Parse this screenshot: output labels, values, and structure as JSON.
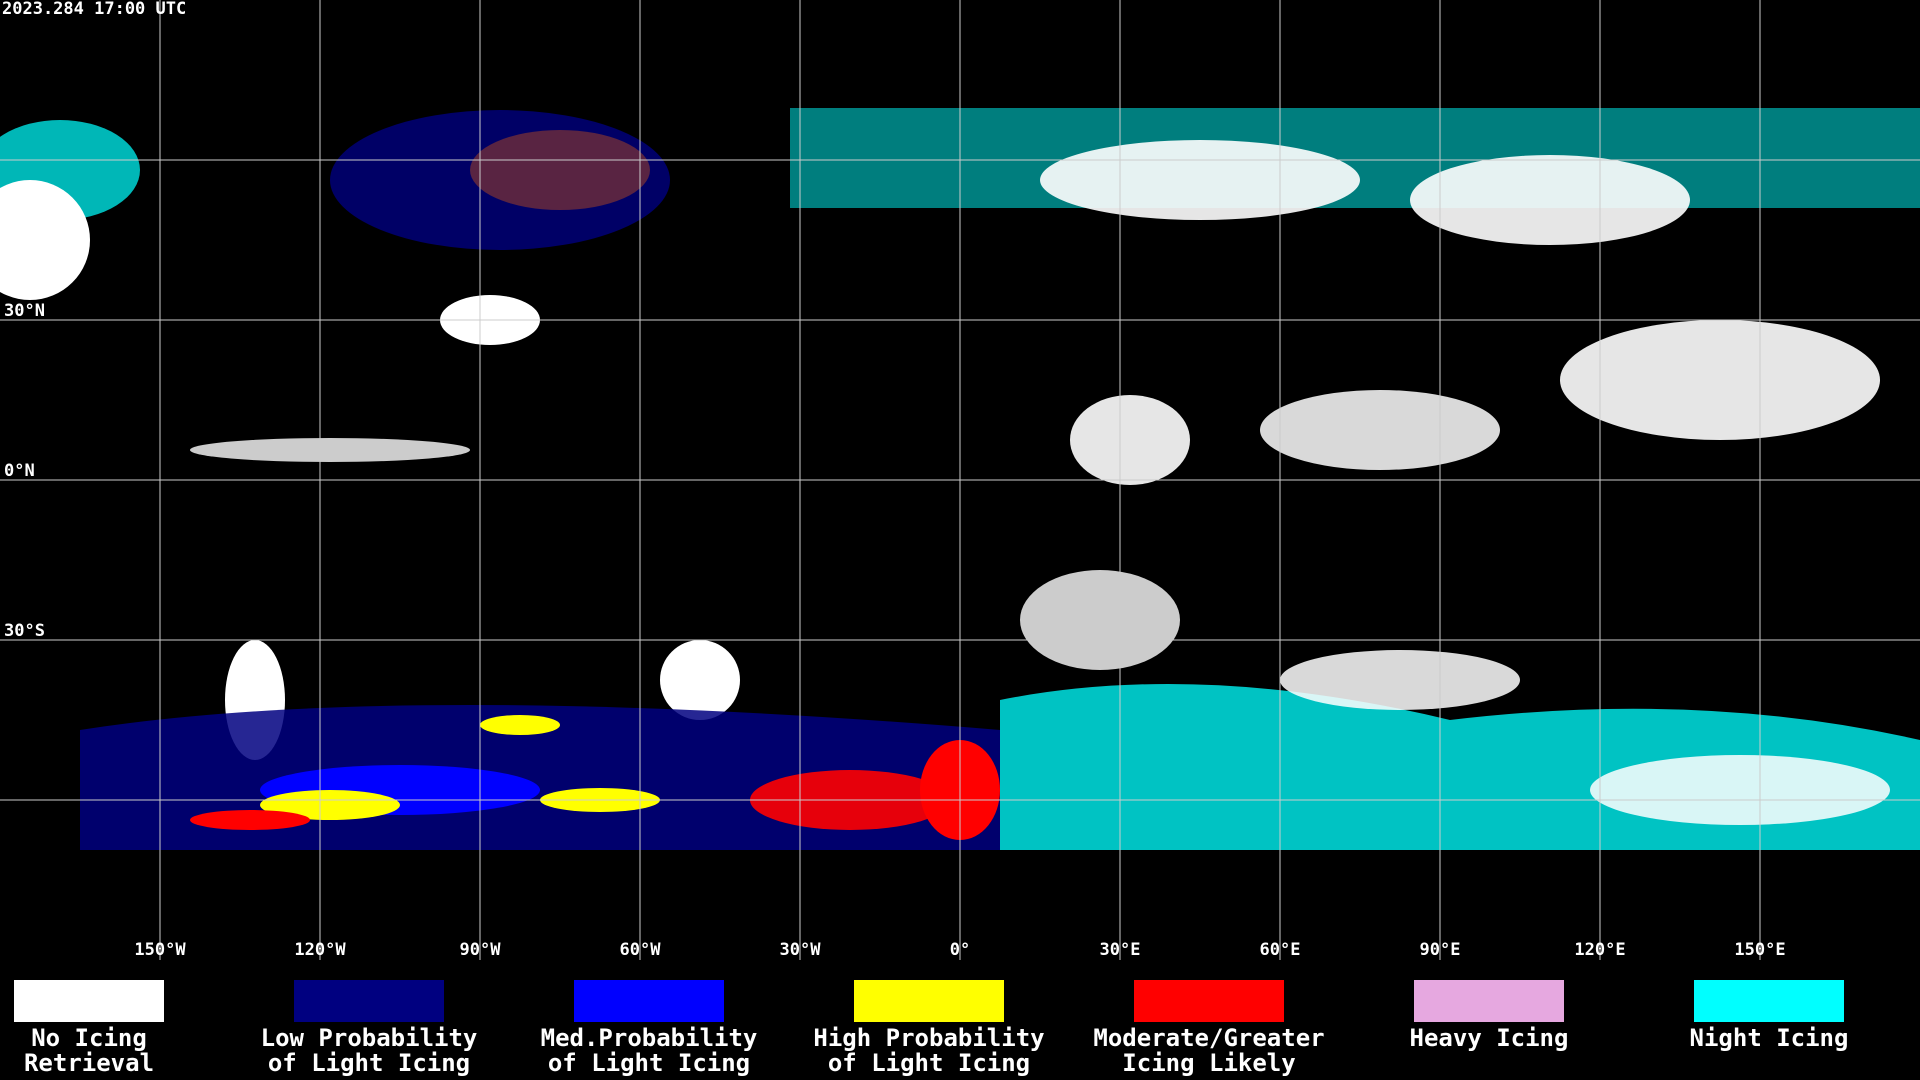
{
  "header": {
    "timestamp": "2023.284 17:00 UTC"
  },
  "map": {
    "lon_labels": [
      "150°W",
      "120°W",
      "90°W",
      "60°W",
      "30°W",
      "0°",
      "30°E",
      "60°E",
      "90°E",
      "120°E",
      "150°E"
    ],
    "lat_labels": [
      "30°N",
      "0°N",
      "30°S"
    ]
  },
  "legend": {
    "items": [
      {
        "lines": [
          "No Icing",
          "Retrieval"
        ],
        "color": "#ffffff"
      },
      {
        "lines": [
          "Low Probability",
          "of Light Icing"
        ],
        "color": "#000080"
      },
      {
        "lines": [
          "Med.Probability",
          "of Light Icing"
        ],
        "color": "#0000ff"
      },
      {
        "lines": [
          "High Probability",
          "of Light Icing"
        ],
        "color": "#ffff00"
      },
      {
        "lines": [
          "Moderate/Greater",
          "Icing Likely"
        ],
        "color": "#ff0000"
      },
      {
        "lines": [
          "Heavy Icing"
        ],
        "color": "#e6a8e0"
      },
      {
        "lines": [
          "Night Icing"
        ],
        "color": "#00ffff"
      }
    ]
  }
}
